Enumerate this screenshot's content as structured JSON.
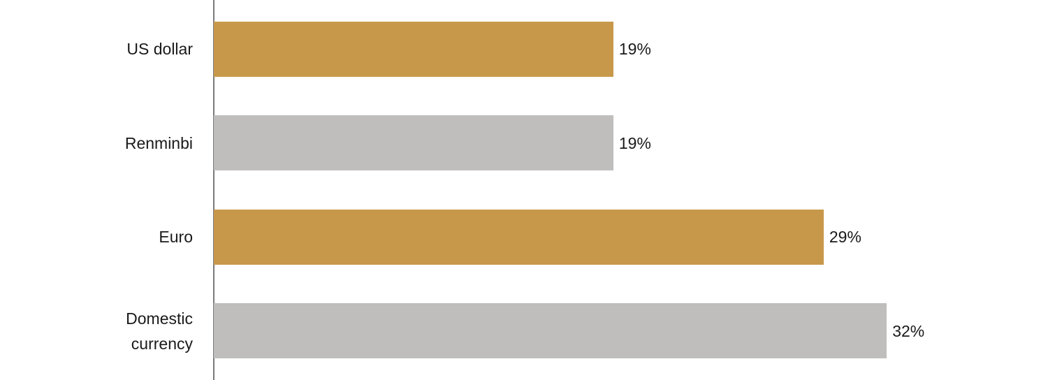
{
  "chart_data": {
    "type": "bar",
    "orientation": "horizontal",
    "categories": [
      "US dollar",
      "Renminbi",
      "Euro",
      "Domestic currency"
    ],
    "values": [
      19,
      19,
      29,
      32
    ],
    "value_labels": [
      "19%",
      "19%",
      "29%",
      "32%"
    ],
    "colors": [
      "#c8984a",
      "#bfbebc",
      "#c8984a",
      "#bfbebc"
    ]
  }
}
